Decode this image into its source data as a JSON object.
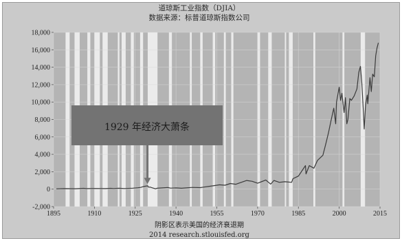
{
  "chart_data": {
    "type": "line",
    "title": "道琼斯工业指数（DJIA）",
    "subtitle": "数据来源：标普道琼斯指数公司",
    "footer_note": "阴影区表示美国的经济衰退期",
    "footer_source": "2014 research.stlouisfed.org",
    "xlabel": "",
    "ylabel": "",
    "xlim": [
      1895,
      2015
    ],
    "ylim": [
      -2000,
      18000
    ],
    "x_ticks": [
      1895,
      1910,
      1925,
      1940,
      1955,
      1970,
      1985,
      2000,
      2015
    ],
    "y_ticks": [
      -2000,
      0,
      2000,
      4000,
      6000,
      8000,
      10000,
      12000,
      14000,
      16000,
      18000
    ],
    "y_tick_labels": [
      "-2,000",
      "0",
      "2,000",
      "4,000",
      "6,000",
      "8,000",
      "10,000",
      "12,000",
      "14,000",
      "16,000",
      "18,000"
    ],
    "grid": true,
    "colors": {
      "plot_background": "#b4b4b4",
      "recession_band": "#ebebeb",
      "line": "#3a3a3a",
      "annotation_box": "#737373",
      "frame": "#cacaca"
    },
    "recessions": [
      [
        1899.4,
        1900.9
      ],
      [
        1902.7,
        1904.6
      ],
      [
        1907.4,
        1908.5
      ],
      [
        1910.0,
        1912.0
      ],
      [
        1913.0,
        1914.9
      ],
      [
        1918.6,
        1919.2
      ],
      [
        1920.0,
        1921.5
      ],
      [
        1923.4,
        1924.5
      ],
      [
        1926.8,
        1927.9
      ],
      [
        1929.6,
        1933.2
      ],
      [
        1937.4,
        1938.5
      ],
      [
        1945.1,
        1945.8
      ],
      [
        1948.9,
        1949.8
      ],
      [
        1953.5,
        1954.4
      ],
      [
        1957.6,
        1958.3
      ],
      [
        1960.3,
        1961.1
      ],
      [
        1969.9,
        1970.9
      ],
      [
        1973.9,
        1975.2
      ],
      [
        1980.0,
        1980.5
      ],
      [
        1981.5,
        1982.9
      ],
      [
        1990.5,
        1991.2
      ],
      [
        2001.2,
        2001.9
      ],
      [
        2007.9,
        2009.5
      ]
    ],
    "annotation": {
      "text": "1929 年经济大萧条",
      "target_x": 1929.5,
      "target_y": 350
    },
    "series": [
      {
        "values": [
          [
            1896,
            40
          ],
          [
            1899,
            65
          ],
          [
            1903,
            50
          ],
          [
            1906,
            95
          ],
          [
            1907,
            60
          ],
          [
            1910,
            80
          ],
          [
            1914,
            60
          ],
          [
            1916,
            95
          ],
          [
            1917,
            75
          ],
          [
            1919,
            105
          ],
          [
            1921,
            70
          ],
          [
            1924,
            110
          ],
          [
            1926,
            155
          ],
          [
            1927,
            200
          ],
          [
            1928,
            300
          ],
          [
            1929.6,
            381
          ],
          [
            1929.9,
            230
          ],
          [
            1930.5,
            240
          ],
          [
            1931,
            180
          ],
          [
            1932.5,
            42
          ],
          [
            1933,
            100
          ],
          [
            1937,
            190
          ],
          [
            1938,
            120
          ],
          [
            1940,
            140
          ],
          [
            1942,
            100
          ],
          [
            1946,
            200
          ],
          [
            1949,
            170
          ],
          [
            1950,
            230
          ],
          [
            1954,
            400
          ],
          [
            1956,
            500
          ],
          [
            1958,
            450
          ],
          [
            1960,
            650
          ],
          [
            1962,
            560
          ],
          [
            1966,
            1000
          ],
          [
            1968,
            900
          ],
          [
            1970,
            680
          ],
          [
            1973,
            1050
          ],
          [
            1974.8,
            580
          ],
          [
            1976,
            1000
          ],
          [
            1978,
            780
          ],
          [
            1980,
            850
          ],
          [
            1982.5,
            780
          ],
          [
            1983,
            1200
          ],
          [
            1985,
            1500
          ],
          [
            1987.6,
            2700
          ],
          [
            1987.8,
            1750
          ],
          [
            1989,
            2700
          ],
          [
            1990.7,
            2400
          ],
          [
            1992,
            3300
          ],
          [
            1994,
            3900
          ],
          [
            1995,
            5100
          ],
          [
            1996,
            6400
          ],
          [
            1997,
            7900
          ],
          [
            1998,
            9300
          ],
          [
            1998.7,
            7500
          ],
          [
            1999,
            10000
          ],
          [
            2000,
            11700
          ],
          [
            2000.5,
            10200
          ],
          [
            2001,
            11000
          ],
          [
            2001.8,
            8800
          ],
          [
            2002.3,
            10500
          ],
          [
            2002.8,
            7500
          ],
          [
            2003.2,
            8000
          ],
          [
            2003.9,
            10400
          ],
          [
            2004.5,
            10200
          ],
          [
            2005.5,
            10700
          ],
          [
            2006.5,
            11500
          ],
          [
            2007.2,
            13400
          ],
          [
            2007.8,
            14100
          ],
          [
            2008.3,
            12200
          ],
          [
            2008.9,
            8800
          ],
          [
            2009.2,
            6900
          ],
          [
            2009.7,
            9700
          ],
          [
            2010.3,
            10800
          ],
          [
            2010.5,
            9800
          ],
          [
            2011.3,
            12800
          ],
          [
            2011.8,
            11200
          ],
          [
            2012.3,
            13200
          ],
          [
            2012.9,
            12900
          ],
          [
            2013.4,
            15300
          ],
          [
            2013.9,
            16200
          ],
          [
            2014.4,
            16800
          ]
        ]
      }
    ]
  }
}
